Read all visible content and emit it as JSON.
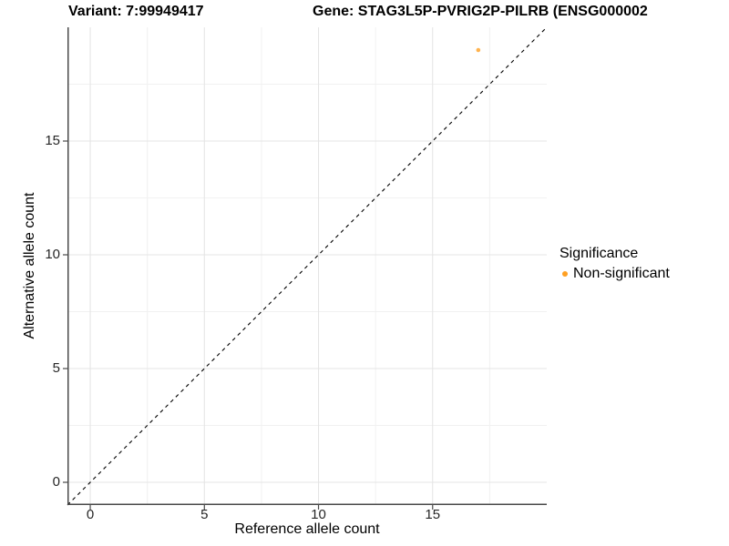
{
  "header": {
    "variant_title": "Variant: 7:99949417",
    "gene_title": "Gene: STAG3L5P-PVRIG2P-PILRB (ENSG000002"
  },
  "chart_data": {
    "type": "scatter",
    "titles": {
      "left": "Variant: 7:99949417",
      "right": "Gene: STAG3L5P-PVRIG2P-PILRB (ENSG000002"
    },
    "xlabel": "Reference allele count",
    "ylabel": "Alternative allele count",
    "xlim": [
      -1,
      20
    ],
    "ylim": [
      -1,
      20
    ],
    "x_ticks": [
      0,
      5,
      10,
      15
    ],
    "y_ticks": [
      0,
      5,
      10,
      15
    ],
    "minor_ticks": [
      2.5,
      7.5,
      12.5,
      17.5
    ],
    "grid": true,
    "reference_line": {
      "type": "diagonal-identity",
      "style": "dashed",
      "color": "#000000"
    },
    "points": [
      {
        "x": 17,
        "y": 19,
        "series": "Non-significant"
      }
    ],
    "legend": {
      "title": "Significance",
      "position": "right",
      "items": [
        {
          "label": "Non-significant",
          "color": "#FFA022"
        }
      ]
    },
    "colors": {
      "grid_major": "#E4E4E4",
      "grid_minor": "#F1F1F1",
      "axis_line": "#4A4A4A",
      "point_fill": "#FFA022"
    }
  }
}
